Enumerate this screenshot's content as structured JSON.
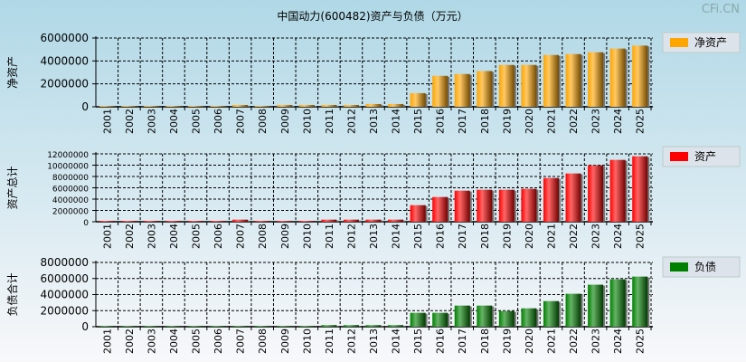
{
  "watermark": "CFi.CN",
  "chart_data": {
    "type": "bar",
    "title": "中国动力(600482)资产与负债（万元）",
    "categories": [
      "2001",
      "2002",
      "2003",
      "2004",
      "2005",
      "2006",
      "2007",
      "2008",
      "2009",
      "2010",
      "2011",
      "2012",
      "2013",
      "2014",
      "2015",
      "2016",
      "2017",
      "2018",
      "2019",
      "2020",
      "2021",
      "2022",
      "2023",
      "2024",
      "2025"
    ],
    "panels": [
      {
        "name": "净资产",
        "ylabel": "净资产",
        "legend": "净资产",
        "color": "#ffa500",
        "ylim": [
          0,
          6000000
        ],
        "yticks": [
          0,
          2000000,
          4000000,
          6000000
        ],
        "values": [
          80000,
          80000,
          80000,
          80000,
          80000,
          80000,
          160000,
          80000,
          160000,
          160000,
          160000,
          160000,
          240000,
          240000,
          1190000,
          2700000,
          2860000,
          3120000,
          3650000,
          3650000,
          4520000,
          4600000,
          4760000,
          5080000,
          5340000
        ]
      },
      {
        "name": "资产总计",
        "ylabel": "资产总计",
        "legend": "资产",
        "color": "#ff0000",
        "ylim": [
          0,
          12000000
        ],
        "yticks": [
          0,
          2000000,
          4000000,
          6000000,
          8000000,
          10000000,
          12000000
        ],
        "values": [
          160000,
          160000,
          160000,
          160000,
          160000,
          160000,
          370000,
          160000,
          160000,
          160000,
          370000,
          370000,
          370000,
          370000,
          2930000,
          4370000,
          5490000,
          5650000,
          5650000,
          5810000,
          7730000,
          8530000,
          9970000,
          10930000,
          11570000
        ]
      },
      {
        "name": "负债合计",
        "ylabel": "负债合计",
        "legend": "负债",
        "color": "#008000",
        "ylim": [
          0,
          8000000
        ],
        "yticks": [
          0,
          2000000,
          4000000,
          6000000,
          8000000
        ],
        "values": [
          100000,
          100000,
          100000,
          100000,
          100000,
          100000,
          100000,
          100000,
          100000,
          100000,
          200000,
          200000,
          200000,
          200000,
          1730000,
          1730000,
          2630000,
          2630000,
          1950000,
          2290000,
          3190000,
          4100000,
          5230000,
          5900000,
          6240000
        ]
      }
    ]
  }
}
